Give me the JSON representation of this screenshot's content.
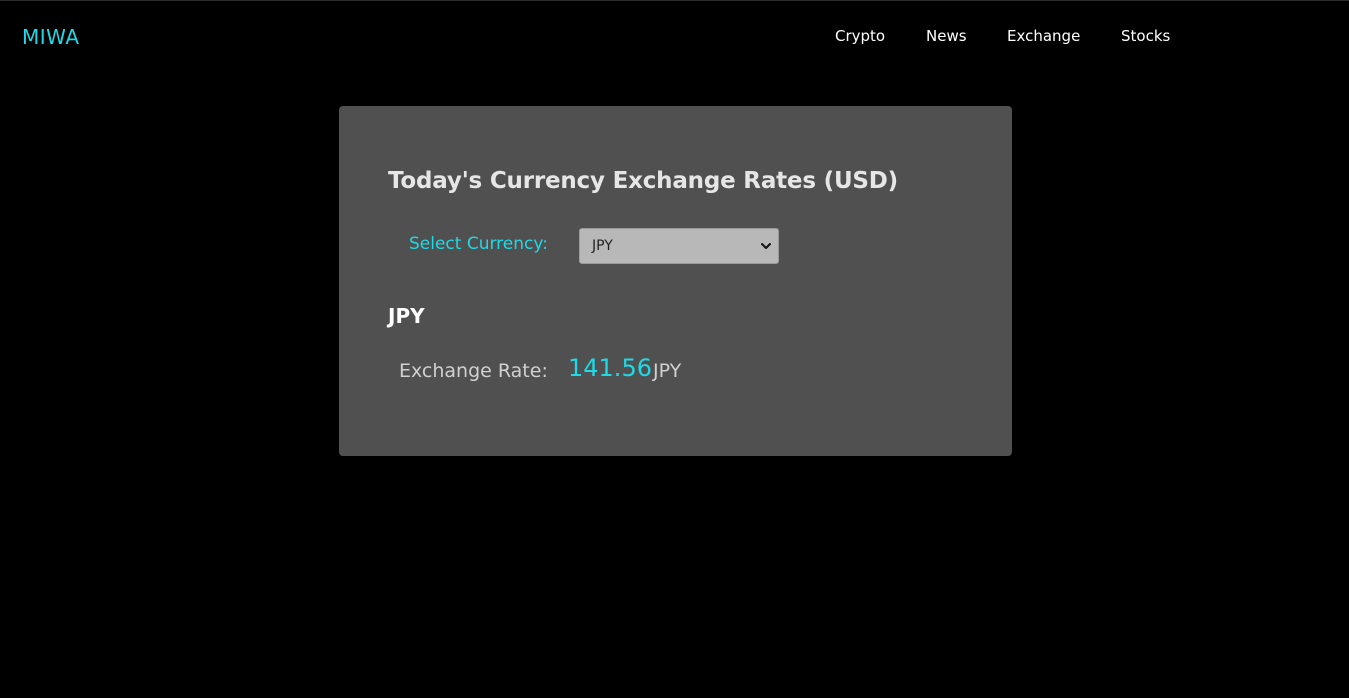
{
  "header": {
    "brand": "MIWA",
    "nav": [
      "Crypto",
      "News",
      "Exchange",
      "Stocks"
    ]
  },
  "card": {
    "title": "Today's Currency Exchange Rates (USD)",
    "select_label": "Select Currency:",
    "selected_currency": "JPY",
    "currency_heading": "JPY",
    "rate_label": "Exchange Rate:",
    "rate_value": "141.56",
    "rate_unit": "JPY"
  },
  "colors": {
    "accent": "#1fd9e6",
    "background": "#000000",
    "card": "#505050"
  }
}
